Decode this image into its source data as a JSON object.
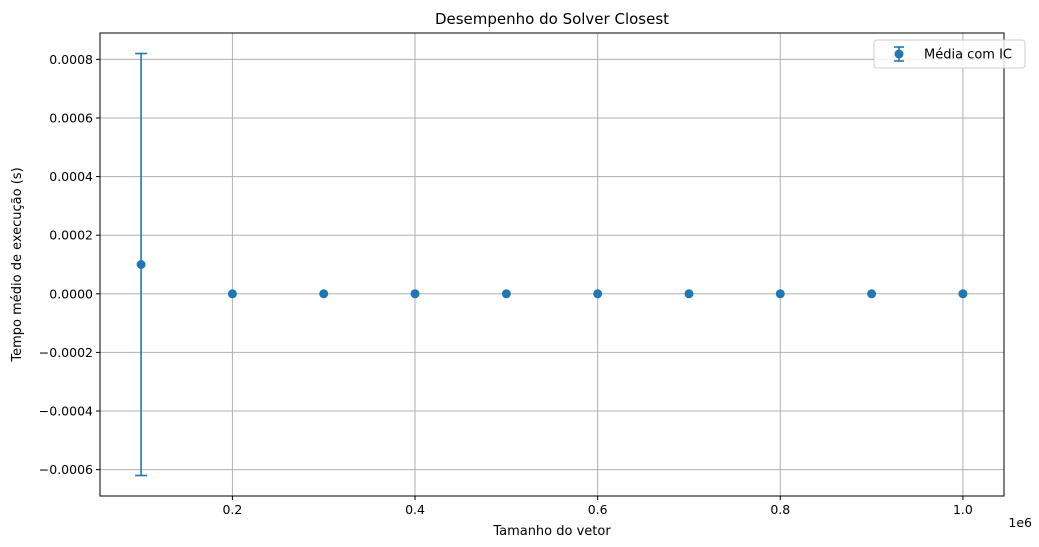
{
  "chart_data": {
    "type": "scatter",
    "title": "Desempenho do Solver Closest",
    "xlabel": "Tamanho do vetor",
    "ylabel": "Tempo médio de execução (s)",
    "x_offset_text": "1e6",
    "xlim": [
      0.055,
      1.045
    ],
    "ylim": [
      -0.00069,
      0.00089
    ],
    "grid": true,
    "legend_position": "upper right",
    "x_ticks": [
      0.2,
      0.4,
      0.6,
      0.8,
      1.0
    ],
    "x_tick_labels": [
      "0.2",
      "0.4",
      "0.6",
      "0.8",
      "1.0"
    ],
    "y_ticks": [
      -0.0006,
      -0.0004,
      -0.0002,
      0.0,
      0.0002,
      0.0004,
      0.0006,
      0.0008
    ],
    "y_tick_labels": [
      "−0.0006",
      "−0.0004",
      "−0.0002",
      "0.0000",
      "0.0002",
      "0.0004",
      "0.0006",
      "0.0008"
    ],
    "series": [
      {
        "name": "Média com IC",
        "color": "#1f77b4",
        "x": [
          0.1,
          0.2,
          0.3,
          0.4,
          0.5,
          0.6,
          0.7,
          0.8,
          0.9,
          1.0
        ],
        "y": [
          0.0001,
          0.0,
          0.0,
          0.0,
          0.0,
          0.0,
          0.0,
          0.0,
          0.0,
          0.0
        ],
        "err_low": [
          -0.00062,
          0.0,
          0.0,
          0.0,
          0.0,
          0.0,
          0.0,
          0.0,
          0.0,
          0.0
        ],
        "err_high": [
          0.00082,
          0.0,
          0.0,
          0.0,
          0.0,
          0.0,
          0.0,
          0.0,
          0.0,
          0.0
        ]
      }
    ]
  }
}
